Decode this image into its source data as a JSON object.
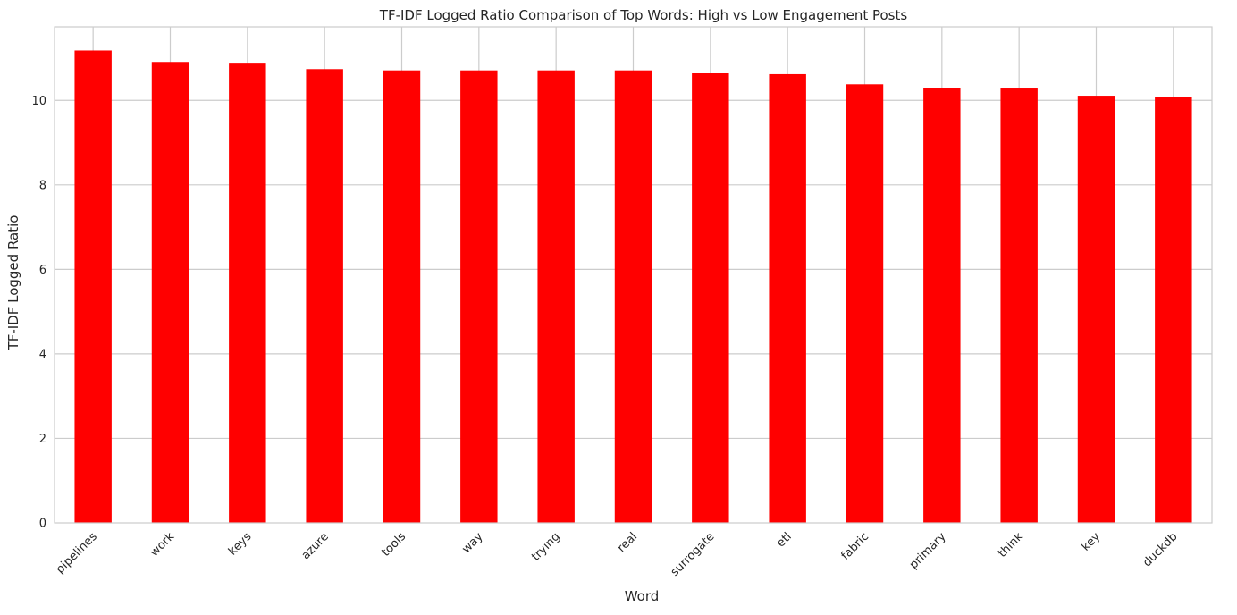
{
  "chart_data": {
    "type": "bar",
    "title": "TF-IDF Logged Ratio Comparison of Top Words: High vs Low Engagement Posts",
    "xlabel": "Word",
    "ylabel": "TF-IDF Logged Ratio",
    "categories": [
      "pipelines",
      "work",
      "keys",
      "azure",
      "tools",
      "way",
      "trying",
      "real",
      "surrogate",
      "etl",
      "fabric",
      "primary",
      "think",
      "key",
      "duckdb"
    ],
    "values": [
      11.18,
      10.91,
      10.87,
      10.74,
      10.71,
      10.71,
      10.71,
      10.71,
      10.64,
      10.62,
      10.38,
      10.3,
      10.28,
      10.11,
      10.07
    ],
    "ylim": [
      0,
      11.74
    ],
    "yticks": [
      0,
      2,
      4,
      6,
      8,
      10
    ],
    "bar_color": "#ff0000",
    "grid": true,
    "grid_color": "#cccccc",
    "legend": "none"
  }
}
